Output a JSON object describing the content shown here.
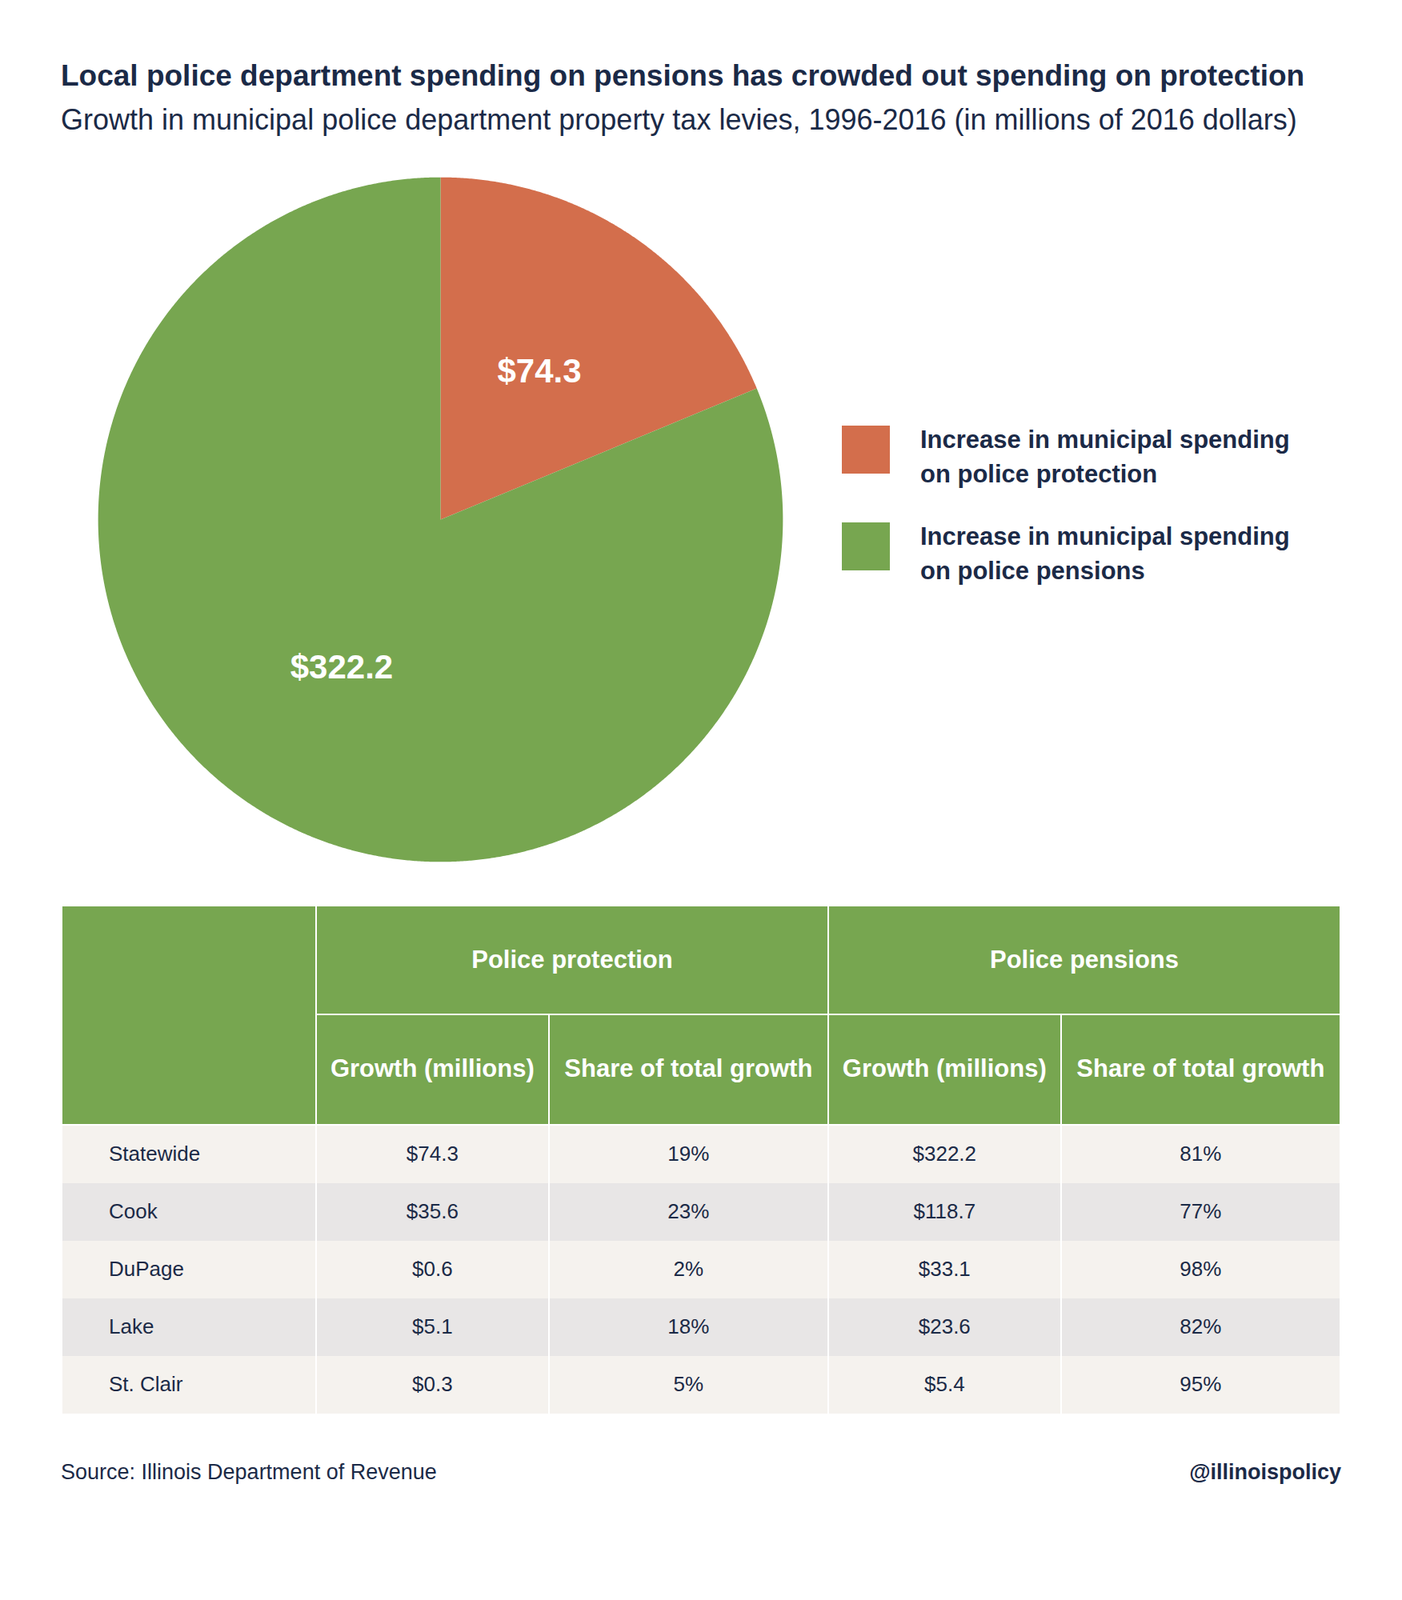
{
  "chart_data": {
    "type": "pie",
    "title": "Local police department spending on pensions has crowded out spending on protection",
    "subtitle": "Growth in municipal police department property tax levies, 1996-2016 (in millions of 2016 dollars)",
    "categories": [
      "Increase in municipal spending on police protection",
      "Increase in municipal spending on police pensions"
    ],
    "values": [
      74.3,
      322.2
    ],
    "value_labels": [
      "$74.3",
      "$322.2"
    ],
    "colors": [
      "#d36e4c",
      "#77a650"
    ],
    "data_labels": true,
    "legend": "right"
  },
  "table": {
    "header_groups": [
      "Police protection",
      "Police pensions"
    ],
    "columns": [
      "Growth (millions)",
      "Share of total growth",
      "Growth (millions)",
      "Share of total growth"
    ],
    "rows": [
      [
        "Statewide",
        "$74.3",
        "19%",
        "$322.2",
        "81%"
      ],
      [
        "Cook",
        "$35.6",
        "23%",
        "$118.7",
        "77%"
      ],
      [
        "DuPage",
        "$0.6",
        "2%",
        "$33.1",
        "98%"
      ],
      [
        "Lake",
        "$5.1",
        "18%",
        "$23.6",
        "82%"
      ],
      [
        "St. Clair",
        "$0.3",
        "5%",
        "$5.4",
        "95%"
      ]
    ]
  },
  "source": "Source: Illinois Department of Revenue",
  "credit": "@illinoispolicy"
}
